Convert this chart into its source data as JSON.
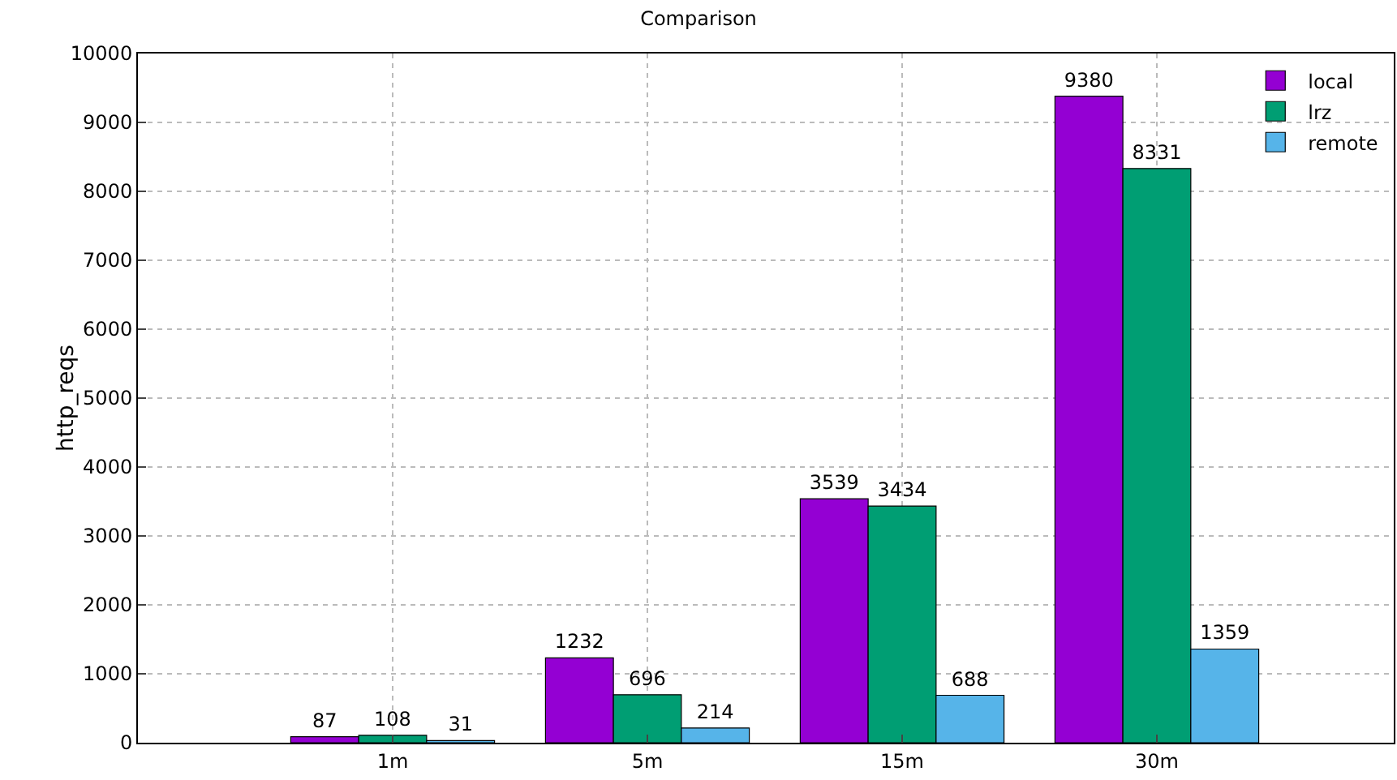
{
  "chart_data": {
    "type": "bar",
    "title": "Comparison",
    "ylabel": "http_reqs",
    "categories": [
      "1m",
      "5m",
      "15m",
      "30m"
    ],
    "series": [
      {
        "name": "local",
        "color": "#9400d3",
        "values": [
          87,
          1232,
          3539,
          9380
        ]
      },
      {
        "name": "lrz",
        "color": "#009e73",
        "values": [
          108,
          696,
          3434,
          8331
        ]
      },
      {
        "name": "remote",
        "color": "#56b4e9",
        "values": [
          31,
          214,
          688,
          1359
        ]
      }
    ],
    "ylim": [
      0,
      10000
    ],
    "yticks": [
      0,
      1000,
      2000,
      3000,
      4000,
      5000,
      6000,
      7000,
      8000,
      9000,
      10000
    ],
    "grid": true,
    "legend": "top right",
    "data_labels": true
  }
}
